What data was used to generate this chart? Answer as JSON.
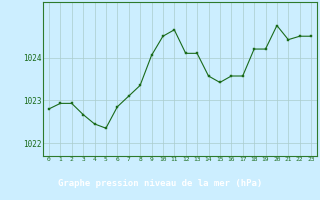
{
  "x": [
    0,
    1,
    2,
    3,
    4,
    5,
    6,
    7,
    8,
    9,
    10,
    11,
    12,
    13,
    14,
    15,
    16,
    17,
    18,
    19,
    20,
    21,
    22,
    23
  ],
  "y": [
    1022.8,
    1022.93,
    1022.93,
    1022.67,
    1022.45,
    1022.35,
    1022.85,
    1023.1,
    1023.35,
    1024.05,
    1024.5,
    1024.65,
    1024.1,
    1024.1,
    1023.57,
    1023.42,
    1023.57,
    1023.57,
    1024.2,
    1024.2,
    1024.75,
    1024.42,
    1024.5,
    1024.5
  ],
  "line_color": "#1a6b1a",
  "marker_color": "#1a6b1a",
  "bg_color": "#cceeff",
  "grid_color": "#aacccc",
  "xlabel": "Graphe pression niveau de la mer (hPa)",
  "yticks": [
    1022,
    1023,
    1024
  ],
  "xticks": [
    0,
    1,
    2,
    3,
    4,
    5,
    6,
    7,
    8,
    9,
    10,
    11,
    12,
    13,
    14,
    15,
    16,
    17,
    18,
    19,
    20,
    21,
    22,
    23
  ],
  "ylim": [
    1021.7,
    1025.3
  ],
  "xlim": [
    -0.5,
    23.5
  ],
  "bottom_bar_color": "#2d7a2d",
  "bottom_bar_height": 0.18
}
